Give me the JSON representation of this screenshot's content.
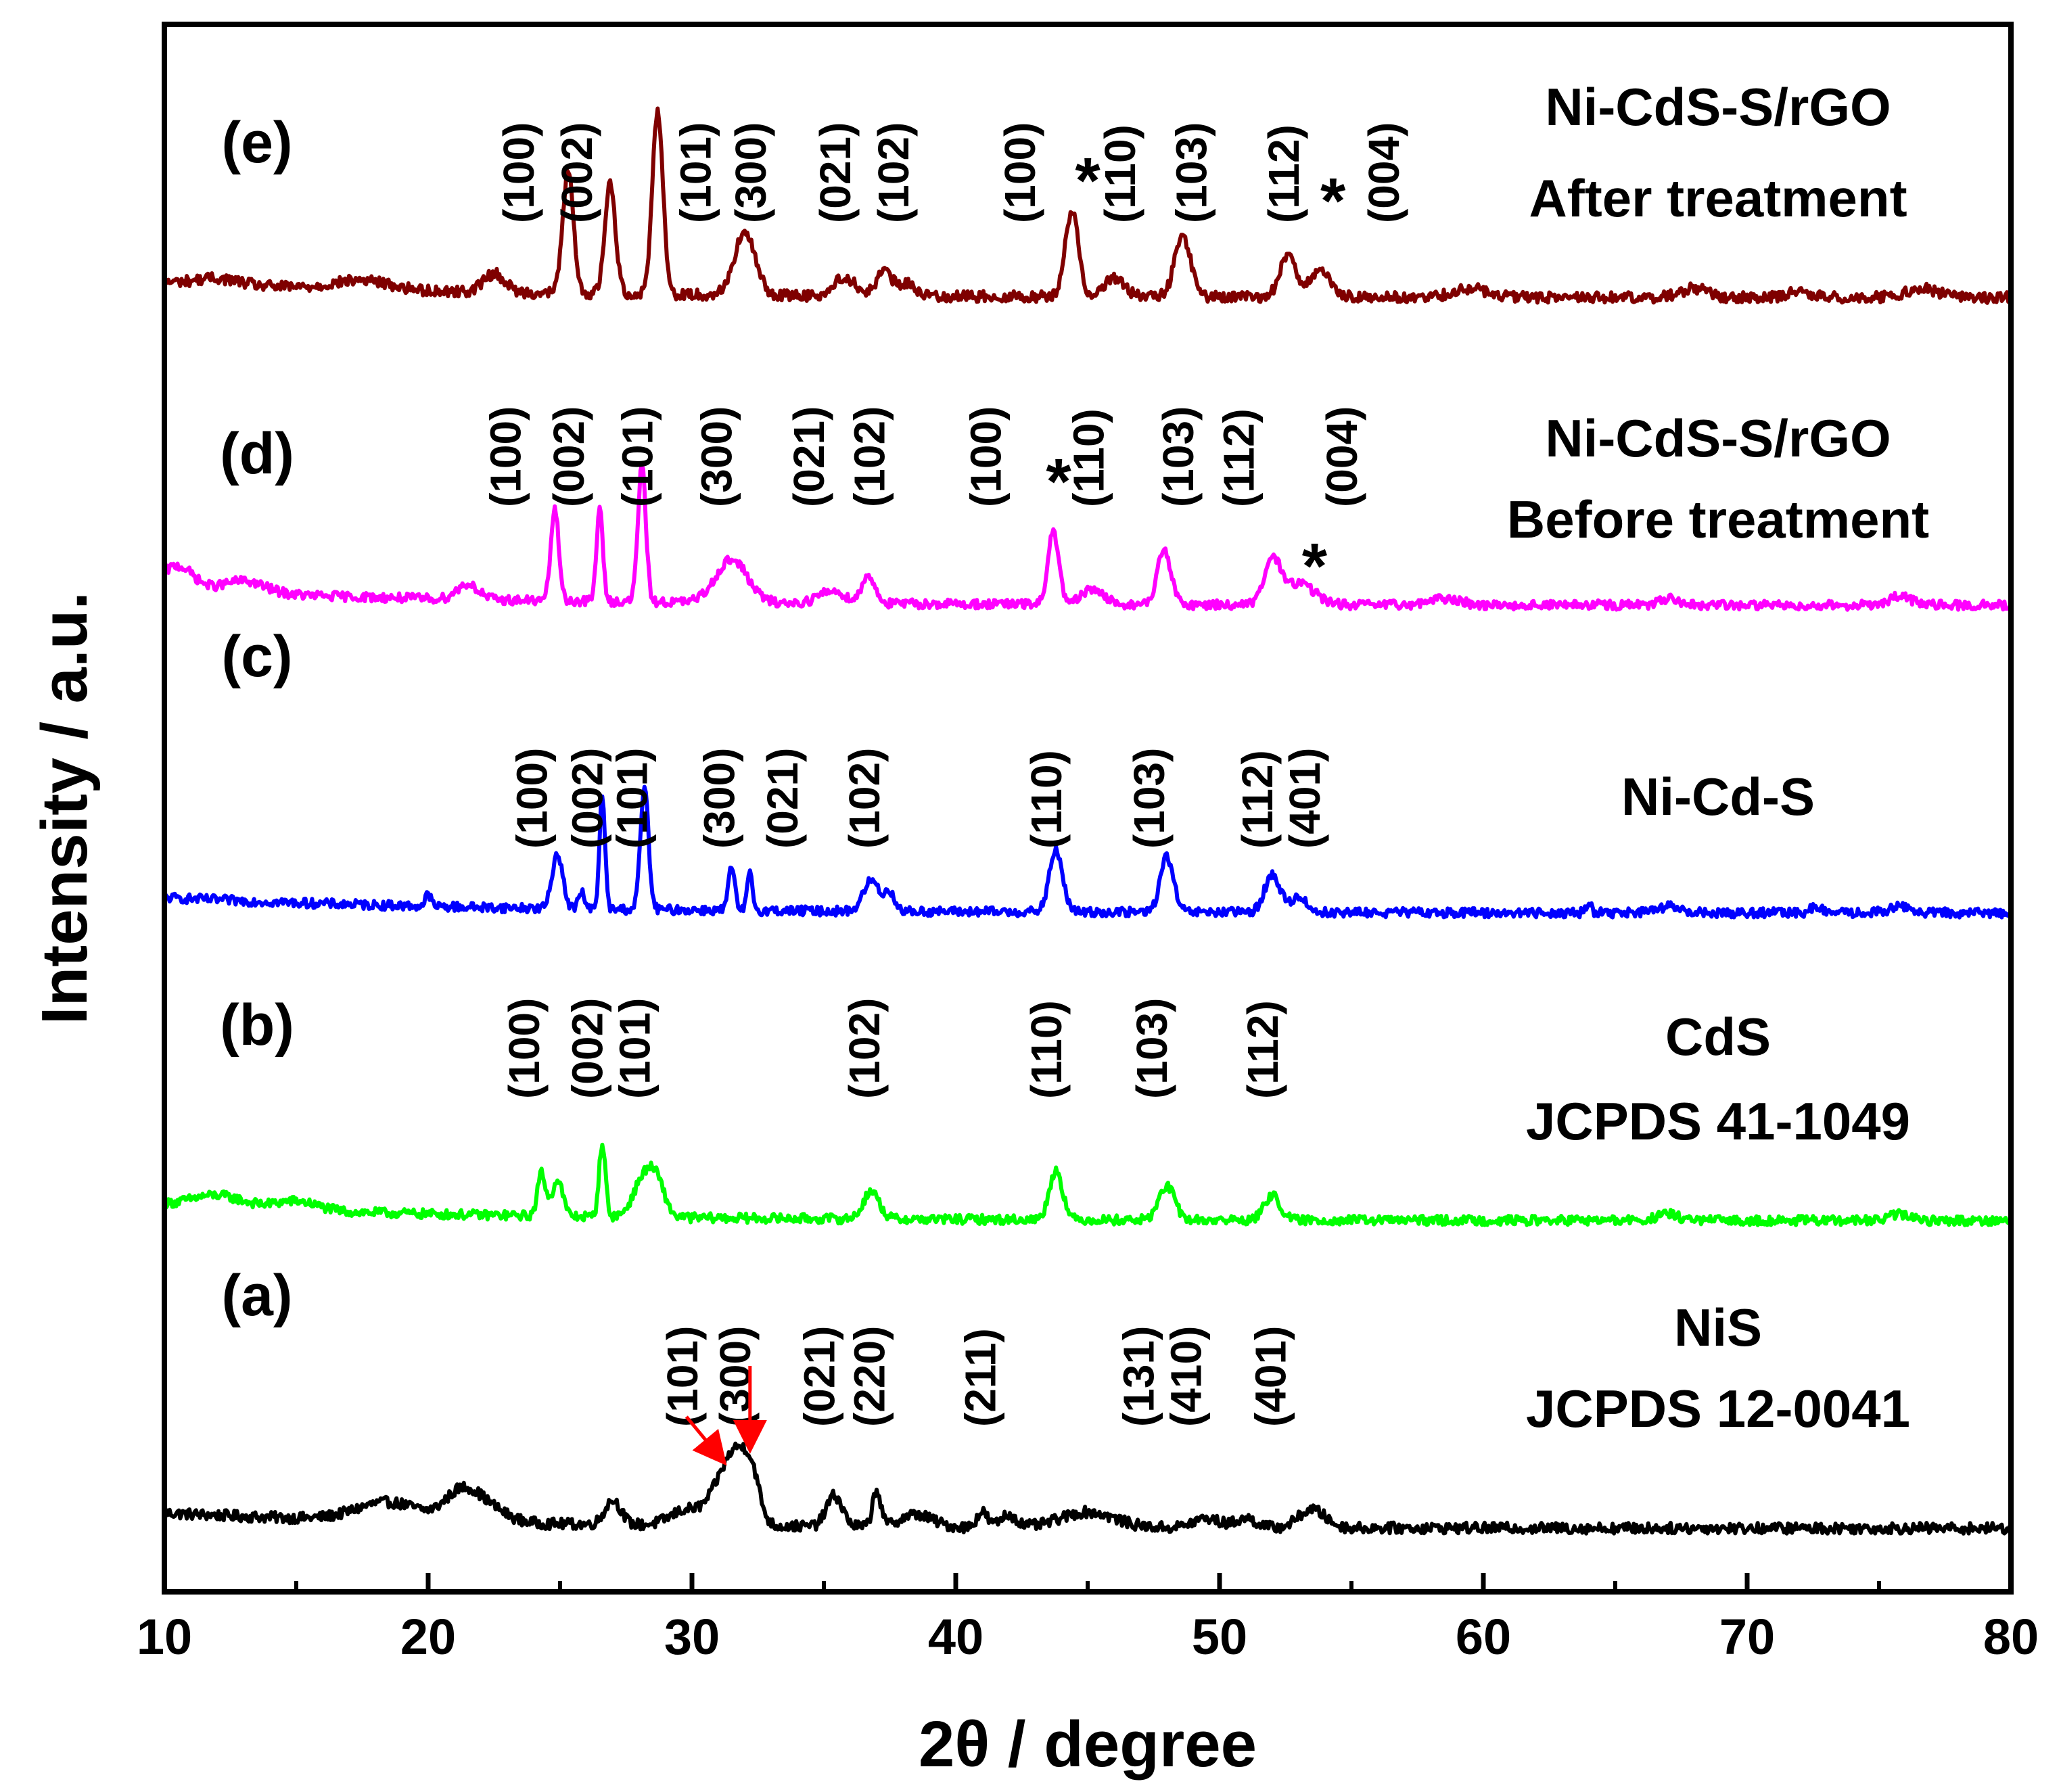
{
  "chart_data": {
    "type": "line",
    "title": "",
    "xlabel": "2θ / degree",
    "ylabel": "Intensity / a.u.",
    "xlim": [
      10,
      80
    ],
    "xticks": [
      10,
      20,
      30,
      40,
      50,
      60,
      70,
      80
    ],
    "yticks": [],
    "grid": false,
    "series": [
      {
        "id": "a",
        "panel": "(a)",
        "name": "NiS",
        "name_line2": "JCPDS 12-0041",
        "color": "#000000",
        "baseline": 0.0,
        "noise": 0.035,
        "peaks": [
          [
            18.5,
            0.06,
            1.2
          ],
          [
            21.2,
            0.07,
            0.6
          ],
          [
            22,
            0.06,
            0.8
          ],
          [
            27,
            0.08,
            0.3
          ],
          [
            29.8,
            0.05,
            0.6
          ],
          [
            31.2,
            0.14,
            0.5
          ],
          [
            31.8,
            0.16,
            0.4
          ],
          [
            32.3,
            0.12,
            0.3
          ],
          [
            35.4,
            0.1,
            0.3
          ],
          [
            37.0,
            0.12,
            0.15
          ],
          [
            38.5,
            0.04,
            0.6
          ],
          [
            41,
            0.05,
            0.2
          ],
          [
            42,
            0.04,
            0.3
          ],
          [
            45.0,
            0.05,
            1.0
          ],
          [
            49.5,
            0.03,
            0.5
          ],
          [
            51,
            0.03,
            0.4
          ],
          [
            53.5,
            0.06,
            0.5
          ]
        ],
        "hkl": [
          {
            "text": "(101)",
            "x": 30.2
          },
          {
            "text": "(300)",
            "x": 32.2
          },
          {
            "text": "(021)",
            "x": 35.4
          },
          {
            "text": "(220)",
            "x": 37.3
          },
          {
            "text": "(211)",
            "x": 41.5
          },
          {
            "text": "(131)",
            "x": 47.5
          },
          {
            "text": "(410)",
            "x": 49.3
          },
          {
            "text": "(401)",
            "x": 52.5
          }
        ]
      },
      {
        "id": "b",
        "panel": "(b)",
        "name": "CdS",
        "name_line2": "JCPDS 41-1049",
        "color": "#00ff00",
        "baseline": 1.0,
        "noise": 0.03,
        "peaks": [
          [
            12,
            0.04,
            1.0
          ],
          [
            15,
            0.03,
            0.8
          ],
          [
            24.3,
            0.14,
            0.15
          ],
          [
            24.9,
            0.12,
            0.2
          ],
          [
            26.6,
            0.24,
            0.12
          ],
          [
            28.2,
            0.13,
            0.4
          ],
          [
            28.7,
            0.08,
            0.3
          ],
          [
            36.8,
            0.09,
            0.3
          ],
          [
            43.8,
            0.16,
            0.25
          ],
          [
            48.0,
            0.11,
            0.3
          ],
          [
            52.0,
            0.08,
            0.3
          ],
          [
            67,
            0.02,
            0.4
          ],
          [
            75.8,
            0.02,
            0.4
          ]
        ],
        "hkl": [
          {
            "text": "(100)",
            "x": 24.2
          },
          {
            "text": "(002)",
            "x": 26.6
          },
          {
            "text": "(101)",
            "x": 28.4
          },
          {
            "text": "(102)",
            "x": 37.1
          },
          {
            "text": "(110)",
            "x": 44.0
          },
          {
            "text": "(103)",
            "x": 48.0
          },
          {
            "text": "(112)",
            "x": 52.2
          }
        ]
      },
      {
        "id": "c",
        "panel": "(c)",
        "name": "Ni-Cd-S",
        "name_line2": "",
        "color": "#0000ff",
        "baseline": 2.0,
        "noise": 0.03,
        "peaks": [
          [
            20,
            0.04,
            0.1
          ],
          [
            24.9,
            0.18,
            0.2
          ],
          [
            25.8,
            0.06,
            0.1
          ],
          [
            26.6,
            0.38,
            0.1
          ],
          [
            28.2,
            0.4,
            0.15
          ],
          [
            31.5,
            0.14,
            0.12
          ],
          [
            32.2,
            0.12,
            0.1
          ],
          [
            36.8,
            0.1,
            0.3
          ],
          [
            37.5,
            0.06,
            0.2
          ],
          [
            43.8,
            0.2,
            0.25
          ],
          [
            48.0,
            0.18,
            0.25
          ],
          [
            52.0,
            0.12,
            0.3
          ],
          [
            53,
            0.05,
            0.3
          ],
          [
            64,
            0.03,
            0.1
          ],
          [
            67,
            0.02,
            0.4
          ],
          [
            72.6,
            0.02,
            0.2
          ],
          [
            75.8,
            0.02,
            0.4
          ]
        ],
        "hkl": [
          {
            "text": "(100)",
            "x": 24.5
          },
          {
            "text": "(002)",
            "x": 26.6
          },
          {
            "text": "(101)",
            "x": 28.3
          },
          {
            "text": "(300)",
            "x": 31.6
          },
          {
            "text": "(021)",
            "x": 34.0
          },
          {
            "text": "(102)",
            "x": 37.1
          },
          {
            "text": "(110)",
            "x": 44.0
          },
          {
            "text": "(103)",
            "x": 47.9
          },
          {
            "text": "(112)",
            "x": 52.0
          },
          {
            "text": "(401)",
            "x": 53.8
          }
        ]
      },
      {
        "id": "d",
        "panel": "(d)",
        "name": "Ni-CdS-S/rGO",
        "name_line2": "Before treatment",
        "color": "#ff00ff",
        "baseline": 3.0,
        "noise": 0.03,
        "peaks": [
          [
            10.5,
            0.08,
            0.6
          ],
          [
            13,
            0.04,
            0.8
          ],
          [
            21.5,
            0.05,
            0.4
          ],
          [
            24.8,
            0.3,
            0.15
          ],
          [
            26.5,
            0.3,
            0.12
          ],
          [
            28.1,
            0.44,
            0.15
          ],
          [
            31.5,
            0.14,
            0.6
          ],
          [
            35.3,
            0.04,
            0.5
          ],
          [
            36.7,
            0.09,
            0.25
          ],
          [
            43.7,
            0.24,
            0.2
          ],
          [
            45.2,
            0.05,
            0.4
          ],
          [
            47.9,
            0.18,
            0.25
          ],
          [
            52.0,
            0.14,
            0.3
          ],
          [
            53.0,
            0.07,
            0.6
          ],
          [
            58.5,
            0.02,
            0.6
          ],
          [
            67,
            0.02,
            0.3
          ],
          [
            75.8,
            0.03,
            0.4
          ]
        ],
        "hkl": [
          {
            "text": "(100)",
            "x": 23.5
          },
          {
            "text": "(002)",
            "x": 25.9
          },
          {
            "text": "(101)",
            "x": 28.5
          },
          {
            "text": "(300)",
            "x": 31.5
          },
          {
            "text": "(021)",
            "x": 35.0
          },
          {
            "text": "(102)",
            "x": 37.3
          },
          {
            "text": "(100)",
            "x": 41.7
          },
          {
            "text": "(110)",
            "x": 45.6
          },
          {
            "text": "(103)",
            "x": 49.0
          },
          {
            "text": "(112)",
            "x": 51.3
          },
          {
            "text": "(004)",
            "x": 55.2
          }
        ],
        "stars": [
          {
            "text": "*",
            "x": 43.9
          },
          {
            "text": "*",
            "x": 53.6
          }
        ]
      },
      {
        "id": "e",
        "panel": "(e)",
        "name": "Ni-CdS-S/rGO",
        "name_line2": "After treatment",
        "color": "#7f0000",
        "baseline": 4.0,
        "noise": 0.035,
        "peaks": [
          [
            12,
            0.02,
            0.8
          ],
          [
            17.5,
            0.03,
            1.0
          ],
          [
            22.5,
            0.06,
            0.4
          ],
          [
            25.3,
            0.4,
            0.2
          ],
          [
            26.9,
            0.36,
            0.2
          ],
          [
            28.7,
            0.6,
            0.2
          ],
          [
            32.0,
            0.2,
            0.4
          ],
          [
            35.8,
            0.06,
            0.4
          ],
          [
            37.3,
            0.08,
            0.3
          ],
          [
            38.2,
            0.04,
            0.3
          ],
          [
            44.4,
            0.28,
            0.25
          ],
          [
            46,
            0.06,
            0.4
          ],
          [
            48.6,
            0.2,
            0.3
          ],
          [
            52.6,
            0.14,
            0.3
          ],
          [
            53.8,
            0.08,
            0.4
          ],
          [
            59.5,
            0.03,
            0.6
          ],
          [
            68,
            0.03,
            0.5
          ],
          [
            72,
            0.02,
            0.4
          ],
          [
            76.6,
            0.03,
            0.6
          ]
        ],
        "hkl": [
          {
            "text": "(100)",
            "x": 24.0
          },
          {
            "text": "(002)",
            "x": 26.2
          },
          {
            "text": "(101)",
            "x": 30.7
          },
          {
            "text": "(300)",
            "x": 32.8
          },
          {
            "text": "(021)",
            "x": 36.0
          },
          {
            "text": "(102)",
            "x": 38.2
          },
          {
            "text": "(100)",
            "x": 43.0
          },
          {
            "text": "(110)",
            "x": 46.8
          },
          {
            "text": "(103)",
            "x": 49.5
          },
          {
            "text": "(112)",
            "x": 53.0
          },
          {
            "text": "(004)",
            "x": 56.8
          }
        ],
        "stars": [
          {
            "text": "*",
            "x": 45.0
          },
          {
            "text": "*",
            "x": 54.3
          }
        ]
      }
    ],
    "annotations": [
      {
        "type": "arrow",
        "color": "#ff0000",
        "target_x": 31.2,
        "label": "(101)"
      },
      {
        "type": "arrow",
        "color": "#ff0000",
        "target_x": 32.2,
        "label": "(300)"
      }
    ]
  }
}
